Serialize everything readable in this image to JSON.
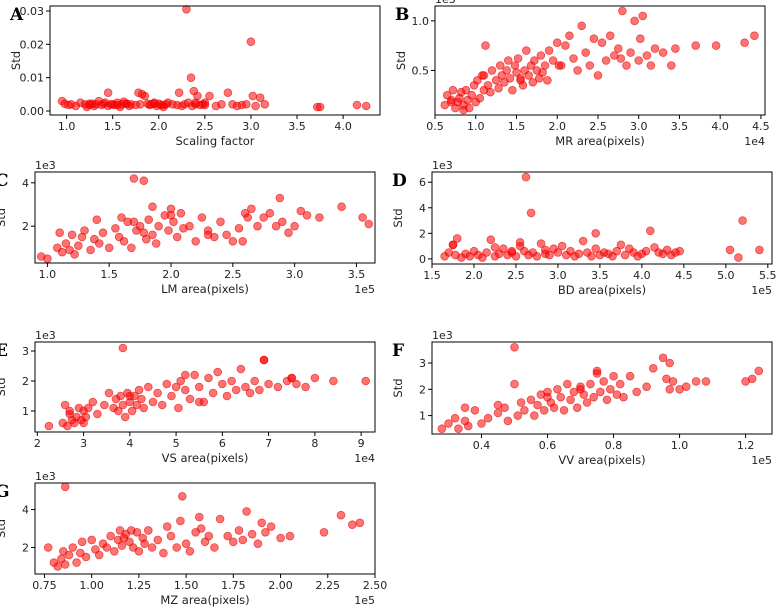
{
  "chart_data": [
    {
      "id": "A",
      "type": "scatter",
      "xlabel": "Scaling factor",
      "ylabel": "Std",
      "multiplier": "",
      "xlim": [
        0.82,
        4.4
      ],
      "ylim": [
        -0.0012,
        0.0315
      ],
      "xticks": [
        1.0,
        1.5,
        2.0,
        2.5,
        3.0,
        3.5,
        4.0
      ],
      "xticklabels": [
        "1.0",
        "1.5",
        "2.0",
        "2.5",
        "3.0",
        "3.5",
        "4.0"
      ],
      "yticks": [
        0.0,
        0.01,
        0.02,
        0.03
      ],
      "yticklabels": [
        "0.00",
        "0.01",
        "0.02",
        "0.03"
      ],
      "x": [
        0.95,
        0.98,
        1.02,
        1.05,
        1.1,
        1.15,
        1.2,
        1.22,
        1.25,
        1.28,
        1.3,
        1.32,
        1.35,
        1.38,
        1.4,
        1.42,
        1.45,
        1.48,
        1.5,
        1.52,
        1.55,
        1.58,
        1.6,
        1.62,
        1.65,
        1.68,
        1.7,
        1.75,
        1.78,
        1.8,
        1.85,
        1.88,
        1.9,
        1.92,
        1.95,
        1.98,
        2.0,
        2.02,
        2.05,
        2.08,
        2.1,
        2.15,
        2.2,
        2.25,
        2.28,
        2.3,
        2.32,
        2.35,
        2.38,
        2.4,
        2.42,
        2.45,
        2.48,
        2.5,
        2.55,
        2.62,
        2.68,
        2.75,
        2.8,
        2.85,
        2.9,
        2.95,
        3.0,
        3.02,
        3.05,
        3.1,
        3.15,
        3.72,
        3.75,
        4.15,
        4.25,
        1.45,
        1.82,
        2.22,
        2.36,
        2.4,
        2.5,
        1.25,
        1.55,
        1.65,
        1.95,
        2.05
      ],
      "y": [
        0.003,
        0.0022,
        0.0018,
        0.002,
        0.0015,
        0.0025,
        0.002,
        0.0012,
        0.0018,
        0.0022,
        0.0015,
        0.002,
        0.003,
        0.0018,
        0.0022,
        0.0025,
        0.0015,
        0.002,
        0.002,
        0.0018,
        0.0025,
        0.0012,
        0.002,
        0.0028,
        0.0022,
        0.0015,
        0.002,
        0.0018,
        0.0055,
        0.002,
        0.0045,
        0.0022,
        0.0018,
        0.002,
        0.0025,
        0.0015,
        0.0022,
        0.0018,
        0.0012,
        0.002,
        0.0025,
        0.002,
        0.0018,
        0.0015,
        0.002,
        0.0305,
        0.0025,
        0.01,
        0.006,
        0.002,
        0.0045,
        0.0018,
        0.002,
        0.0025,
        0.0045,
        0.0015,
        0.002,
        0.0055,
        0.002,
        0.0015,
        0.0018,
        0.002,
        0.0208,
        0.0045,
        0.0015,
        0.004,
        0.002,
        0.0012,
        0.0012,
        0.0018,
        0.0015,
        0.0055,
        0.005,
        0.0055,
        0.0015,
        0.0025,
        0.0018,
        0.0022,
        0.0018,
        0.0022,
        0.0022,
        0.0018
      ]
    },
    {
      "id": "B",
      "type": "scatter",
      "xlabel": "MR area(pixels)",
      "ylabel": "Std",
      "multiplier": "1e3",
      "xmultiplier": "1e4",
      "xlim": [
        0.5,
        4.55
      ],
      "ylim": [
        0.05,
        1.15
      ],
      "xticks": [
        0.5,
        1.0,
        1.5,
        2.0,
        2.5,
        3.0,
        3.5,
        4.0,
        4.5
      ],
      "xticklabels": [
        "0.5",
        "1.0",
        "1.5",
        "2.0",
        "2.5",
        "3.0",
        "3.5",
        "4.0",
        "4.5"
      ],
      "yticks": [
        0.5,
        1.0
      ],
      "yticklabels": [
        "0.5",
        "1.0"
      ],
      "x": [
        0.62,
        0.65,
        0.7,
        0.72,
        0.75,
        0.78,
        0.8,
        0.82,
        0.85,
        0.88,
        0.9,
        0.92,
        0.95,
        0.98,
        1.0,
        1.02,
        1.05,
        1.08,
        1.1,
        1.12,
        1.15,
        1.18,
        1.2,
        1.25,
        1.28,
        1.3,
        1.32,
        1.35,
        1.38,
        1.4,
        1.42,
        1.45,
        1.48,
        1.5,
        1.52,
        1.55,
        1.58,
        1.6,
        1.62,
        1.65,
        1.68,
        1.7,
        1.72,
        1.75,
        1.78,
        1.8,
        1.82,
        1.85,
        1.88,
        1.9,
        1.95,
        2.0,
        2.05,
        2.1,
        2.15,
        2.2,
        2.25,
        2.3,
        2.35,
        2.4,
        2.45,
        2.5,
        2.55,
        2.6,
        2.65,
        2.7,
        2.75,
        2.8,
        2.85,
        2.9,
        2.95,
        3.0,
        3.05,
        3.1,
        3.15,
        3.2,
        3.3,
        3.4,
        3.45,
        3.7,
        3.95,
        4.3,
        4.42,
        1.1,
        1.55,
        2.02,
        2.78,
        3.02,
        0.7,
        0.85
      ],
      "y": [
        0.15,
        0.25,
        0.2,
        0.3,
        0.12,
        0.18,
        0.22,
        0.28,
        0.15,
        0.3,
        0.2,
        0.12,
        0.25,
        0.35,
        0.18,
        0.4,
        0.22,
        0.45,
        0.3,
        0.75,
        0.35,
        0.28,
        0.5,
        0.4,
        0.32,
        0.55,
        0.45,
        0.38,
        0.5,
        0.6,
        0.42,
        0.3,
        0.55,
        0.48,
        0.62,
        0.4,
        0.35,
        0.5,
        0.7,
        0.45,
        0.55,
        0.38,
        0.6,
        0.5,
        0.42,
        0.65,
        0.48,
        0.55,
        0.4,
        0.7,
        0.6,
        0.78,
        0.55,
        0.75,
        0.85,
        0.62,
        0.5,
        0.95,
        0.68,
        0.55,
        0.82,
        0.45,
        0.78,
        0.6,
        0.85,
        0.65,
        0.72,
        1.1,
        0.55,
        0.68,
        1.0,
        0.6,
        1.05,
        0.65,
        0.55,
        0.72,
        0.68,
        0.55,
        0.72,
        0.75,
        0.75,
        0.78,
        0.85,
        0.45,
        0.42,
        0.55,
        0.62,
        0.82,
        0.18,
        0.1
      ]
    },
    {
      "id": "C",
      "type": "scatter",
      "xlabel": "LM area(pixels)",
      "ylabel": "Std",
      "multiplier": "1e3",
      "xmultiplier": "1e5",
      "xlim": [
        0.9,
        3.65
      ],
      "ylim": [
        0.3,
        4.5
      ],
      "xticks": [
        1.0,
        1.5,
        2.0,
        2.5,
        3.0,
        3.5
      ],
      "xticklabels": [
        "1.0",
        "1.5",
        "2.0",
        "2.5",
        "3.0",
        "3.5"
      ],
      "yticks": [
        2,
        4
      ],
      "yticklabels": [
        "2",
        "4"
      ],
      "x": [
        0.95,
        1.0,
        1.08,
        1.1,
        1.12,
        1.15,
        1.18,
        1.2,
        1.22,
        1.25,
        1.28,
        1.3,
        1.35,
        1.38,
        1.4,
        1.42,
        1.45,
        1.5,
        1.55,
        1.58,
        1.6,
        1.62,
        1.65,
        1.68,
        1.7,
        1.72,
        1.75,
        1.78,
        1.8,
        1.82,
        1.85,
        1.88,
        1.9,
        1.95,
        1.98,
        2.0,
        2.02,
        2.05,
        2.08,
        2.1,
        2.15,
        2.2,
        2.25,
        2.3,
        2.35,
        2.4,
        2.45,
        2.5,
        2.55,
        2.6,
        2.62,
        2.65,
        2.7,
        2.75,
        2.8,
        2.85,
        2.88,
        2.9,
        2.95,
        3.0,
        3.05,
        3.1,
        3.2,
        3.38,
        3.55,
        3.6,
        1.7,
        1.78,
        1.85,
        2.0,
        2.3,
        2.58
      ],
      "y": [
        0.6,
        0.5,
        1.0,
        1.7,
        0.8,
        1.2,
        0.9,
        1.6,
        0.7,
        1.1,
        1.5,
        1.8,
        0.9,
        1.4,
        2.3,
        1.2,
        1.7,
        1.0,
        1.9,
        1.5,
        2.4,
        1.3,
        2.2,
        1.0,
        4.2,
        1.8,
        2.0,
        4.1,
        1.4,
        2.3,
        1.6,
        1.2,
        2.0,
        2.5,
        1.8,
        2.8,
        2.2,
        1.5,
        2.6,
        1.9,
        2.0,
        1.3,
        2.4,
        1.8,
        1.5,
        2.2,
        1.6,
        1.3,
        1.9,
        2.6,
        2.4,
        2.8,
        2.0,
        2.4,
        2.6,
        2.0,
        3.3,
        2.2,
        1.7,
        2.0,
        2.7,
        2.5,
        2.4,
        2.9,
        2.4,
        2.1,
        2.2,
        1.7,
        2.9,
        2.5,
        1.6,
        1.3
      ]
    },
    {
      "id": "D",
      "type": "scatter",
      "xlabel": "BD area(pixels)",
      "ylabel": "Std",
      "multiplier": "1e3",
      "xmultiplier": "1e5",
      "xlim": [
        1.5,
        5.55
      ],
      "ylim": [
        -0.4,
        6.8
      ],
      "xticks": [
        1.5,
        2.0,
        2.5,
        3.0,
        3.5,
        4.0,
        4.5,
        5.0,
        5.5
      ],
      "xticklabels": [
        "1.5",
        "2.0",
        "2.5",
        "3.0",
        "3.5",
        "4.0",
        "4.5",
        "5.0",
        "5.5"
      ],
      "yticks": [
        0,
        2,
        4,
        6
      ],
      "yticklabels": [
        "0",
        "2",
        "4",
        "6"
      ],
      "x": [
        1.65,
        1.7,
        1.75,
        1.78,
        1.8,
        1.85,
        1.9,
        1.95,
        2.0,
        2.05,
        2.1,
        2.15,
        2.2,
        2.25,
        2.3,
        2.35,
        2.4,
        2.45,
        2.5,
        2.55,
        2.6,
        2.62,
        2.65,
        2.68,
        2.7,
        2.75,
        2.8,
        2.85,
        2.9,
        2.95,
        3.0,
        3.05,
        3.1,
        3.15,
        3.2,
        3.25,
        3.3,
        3.35,
        3.4,
        3.45,
        3.5,
        3.55,
        3.6,
        3.65,
        3.7,
        3.75,
        3.8,
        3.85,
        3.9,
        3.95,
        4.0,
        4.05,
        4.1,
        4.15,
        4.2,
        4.25,
        4.3,
        4.35,
        4.4,
        4.45,
        5.05,
        5.15,
        5.2,
        5.4,
        1.75,
        2.25,
        2.45,
        2.55,
        2.85,
        3.45
      ],
      "y": [
        0.2,
        0.5,
        1.1,
        0.3,
        1.6,
        0.1,
        0.4,
        0.2,
        0.6,
        0.3,
        0.1,
        0.5,
        1.5,
        0.2,
        0.4,
        0.8,
        0.3,
        0.5,
        0.2,
        1.0,
        0.6,
        6.4,
        0.3,
        3.6,
        0.5,
        0.2,
        1.2,
        0.4,
        0.3,
        0.8,
        0.5,
        1.0,
        0.3,
        0.6,
        0.2,
        0.4,
        1.4,
        0.5,
        0.2,
        0.8,
        0.3,
        0.5,
        0.4,
        0.2,
        0.6,
        1.1,
        0.3,
        0.8,
        0.5,
        0.2,
        0.4,
        0.6,
        2.2,
        0.9,
        0.5,
        0.4,
        0.7,
        0.3,
        0.5,
        0.6,
        0.7,
        0.1,
        3.0,
        0.7,
        1.1,
        0.9,
        0.6,
        1.3,
        0.7,
        2.0
      ]
    },
    {
      "id": "E",
      "type": "scatter",
      "xlabel": "VS area(pixels)",
      "ylabel": "Std",
      "multiplier": "1e3",
      "xmultiplier": "1e4",
      "xlim": [
        1.95,
        9.3
      ],
      "ylim": [
        0.3,
        3.3
      ],
      "xticks": [
        2,
        3,
        4,
        5,
        6,
        7,
        8,
        9
      ],
      "xticklabels": [
        "2",
        "3",
        "4",
        "5",
        "6",
        "7",
        "8",
        "9"
      ],
      "yticks": [
        1,
        2,
        3
      ],
      "yticklabels": [
        "1",
        "2",
        "3"
      ],
      "x": [
        2.25,
        2.55,
        2.6,
        2.65,
        2.7,
        2.75,
        2.8,
        2.85,
        2.9,
        2.95,
        3.0,
        3.05,
        3.1,
        3.2,
        3.3,
        3.45,
        3.55,
        3.65,
        3.7,
        3.75,
        3.8,
        3.85,
        3.9,
        3.95,
        4.0,
        4.05,
        4.1,
        4.15,
        4.2,
        4.25,
        4.3,
        4.4,
        4.5,
        4.6,
        4.7,
        4.8,
        4.9,
        5.0,
        5.05,
        5.1,
        5.2,
        5.3,
        5.4,
        5.5,
        5.6,
        5.7,
        5.8,
        5.9,
        6.0,
        6.1,
        6.2,
        6.3,
        6.4,
        6.5,
        6.6,
        6.7,
        6.8,
        6.9,
        7.0,
        7.2,
        7.4,
        7.5,
        7.6,
        7.8,
        8.0,
        8.4,
        9.1,
        3.85,
        5.2,
        6.9,
        7.5,
        2.7,
        3.0,
        4.0,
        5.5
      ],
      "y": [
        0.5,
        0.6,
        1.2,
        0.5,
        0.9,
        0.7,
        0.6,
        0.8,
        1.1,
        0.7,
        1.0,
        0.8,
        1.1,
        1.3,
        0.9,
        1.2,
        1.6,
        1.1,
        1.4,
        1.0,
        1.5,
        1.2,
        0.8,
        1.6,
        1.3,
        1.0,
        1.5,
        1.2,
        1.7,
        1.4,
        1.1,
        1.8,
        1.3,
        1.6,
        1.2,
        1.9,
        1.5,
        1.8,
        1.1,
        2.0,
        1.7,
        1.4,
        2.2,
        1.8,
        1.3,
        2.1,
        1.6,
        2.3,
        1.9,
        1.5,
        2.0,
        1.7,
        2.4,
        1.8,
        1.6,
        2.0,
        1.7,
        2.7,
        1.9,
        1.8,
        2.0,
        2.1,
        1.9,
        1.8,
        2.1,
        2.0,
        2.0,
        3.1,
        2.2,
        2.7,
        2.1,
        1.0,
        0.6,
        1.5,
        1.3
      ]
    },
    {
      "id": "F",
      "type": "scatter",
      "xlabel": "VV area(pixels)",
      "ylabel": "Std",
      "multiplier": "1e3",
      "xmultiplier": "1e5",
      "xlim": [
        0.25,
        1.28
      ],
      "ylim": [
        0.3,
        3.8
      ],
      "xticks": [
        0.4,
        0.6,
        0.8,
        1.0,
        1.2
      ],
      "xticklabels": [
        "0.4",
        "0.6",
        "0.8",
        "1.0",
        "1.2"
      ],
      "yticks": [
        1,
        2,
        3
      ],
      "yticklabels": [
        "1",
        "2",
        "3"
      ],
      "x": [
        0.28,
        0.3,
        0.32,
        0.33,
        0.35,
        0.36,
        0.38,
        0.4,
        0.42,
        0.45,
        0.47,
        0.48,
        0.5,
        0.51,
        0.52,
        0.53,
        0.55,
        0.56,
        0.57,
        0.58,
        0.59,
        0.6,
        0.61,
        0.62,
        0.63,
        0.64,
        0.65,
        0.66,
        0.67,
        0.68,
        0.69,
        0.7,
        0.71,
        0.72,
        0.73,
        0.74,
        0.75,
        0.76,
        0.77,
        0.78,
        0.79,
        0.8,
        0.81,
        0.82,
        0.83,
        0.85,
        0.87,
        0.9,
        0.92,
        0.95,
        0.96,
        0.97,
        0.98,
        1.0,
        1.02,
        1.05,
        1.08,
        1.2,
        1.22,
        1.24,
        0.5,
        0.35,
        0.45,
        0.6,
        0.7,
        0.75,
        0.97
      ],
      "y": [
        0.5,
        0.7,
        0.9,
        0.5,
        1.3,
        0.6,
        1.2,
        0.7,
        0.9,
        1.1,
        1.3,
        0.8,
        3.6,
        1.0,
        1.5,
        1.2,
        1.6,
        1.0,
        1.4,
        1.8,
        1.2,
        1.9,
        1.5,
        1.3,
        2.0,
        1.7,
        1.2,
        2.2,
        1.6,
        1.9,
        1.3,
        2.1,
        1.8,
        1.5,
        2.2,
        1.7,
        2.7,
        1.9,
        2.3,
        1.6,
        2.0,
        2.5,
        1.8,
        2.2,
        1.7,
        2.5,
        1.9,
        2.1,
        2.8,
        3.2,
        2.4,
        2.0,
        2.3,
        2.0,
        2.1,
        2.3,
        2.3,
        2.3,
        2.4,
        2.7,
        2.2,
        0.8,
        1.4,
        1.7,
        2.0,
        2.6,
        3.0
      ]
    },
    {
      "id": "G",
      "type": "scatter",
      "xlabel": "MZ area(pixels)",
      "ylabel": "Std",
      "multiplier": "1e3",
      "xmultiplier": "1e5",
      "xlim": [
        0.7,
        2.5
      ],
      "ylim": [
        0.6,
        5.4
      ],
      "xticks": [
        0.75,
        1.0,
        1.25,
        1.5,
        1.75,
        2.0,
        2.25,
        2.5
      ],
      "xticklabels": [
        "0.75",
        "1.00",
        "1.25",
        "1.50",
        "1.75",
        "2.00",
        "2.25",
        "2.50"
      ],
      "yticks": [
        2,
        4
      ],
      "yticklabels": [
        "2",
        "4"
      ],
      "x": [
        0.77,
        0.8,
        0.82,
        0.84,
        0.85,
        0.86,
        0.88,
        0.9,
        0.92,
        0.94,
        0.95,
        0.97,
        1.0,
        1.02,
        1.04,
        1.06,
        1.08,
        1.1,
        1.12,
        1.14,
        1.15,
        1.16,
        1.18,
        1.2,
        1.22,
        1.24,
        1.25,
        1.27,
        1.28,
        1.3,
        1.32,
        1.35,
        1.38,
        1.4,
        1.42,
        1.45,
        1.47,
        1.5,
        1.52,
        1.55,
        1.58,
        1.6,
        1.62,
        1.65,
        1.68,
        1.72,
        1.75,
        1.78,
        1.8,
        1.82,
        1.85,
        1.88,
        1.9,
        1.92,
        1.95,
        2.0,
        2.05,
        2.23,
        2.32,
        2.38,
        2.42,
        0.86,
        1.48,
        1.57,
        1.17,
        1.21
      ],
      "y": [
        2.0,
        1.2,
        1.0,
        1.4,
        1.8,
        1.1,
        1.6,
        2.0,
        1.2,
        1.7,
        2.3,
        1.5,
        2.4,
        1.9,
        1.6,
        2.2,
        2.0,
        2.6,
        1.8,
        2.4,
        2.9,
        2.1,
        2.7,
        2.3,
        2.0,
        2.8,
        1.8,
        2.5,
        2.2,
        2.9,
        2.0,
        2.4,
        1.7,
        3.1,
        2.6,
        2.0,
        3.4,
        2.2,
        1.8,
        2.8,
        3.0,
        2.3,
        2.6,
        2.0,
        3.5,
        2.6,
        2.3,
        2.9,
        2.4,
        3.9,
        2.7,
        2.2,
        3.3,
        2.8,
        3.1,
        2.5,
        2.6,
        2.8,
        3.7,
        3.2,
        3.3,
        5.2,
        4.7,
        3.6,
        2.5,
        2.9
      ]
    }
  ]
}
